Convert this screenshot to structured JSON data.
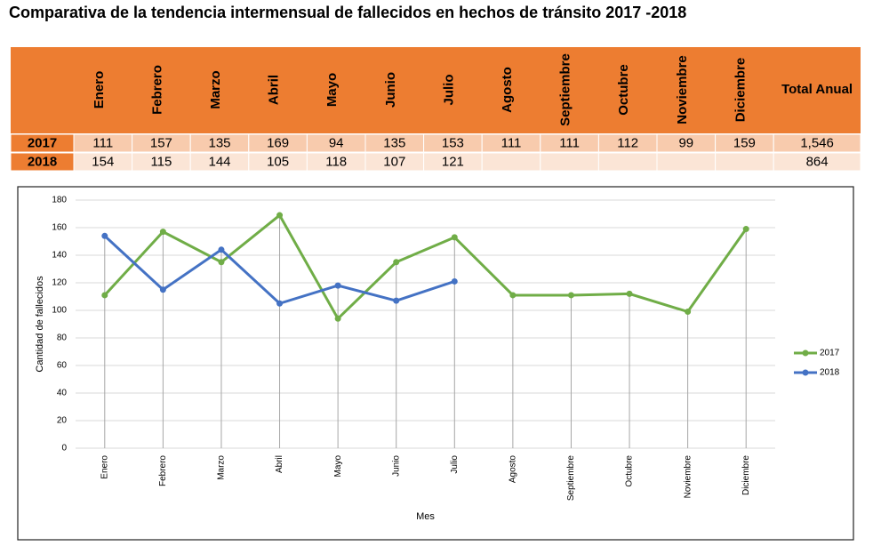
{
  "title": "Comparativa de la tendencia intermensual de fallecidos en hechos de tránsito 2017 -2018",
  "table": {
    "header": [
      "Enero",
      "Febrero",
      "Marzo",
      "Abril",
      "Mayo",
      "Junio",
      "Julio",
      "Agosto",
      "Septiembre",
      "Octubre",
      "Noviembre",
      "Diciembre",
      "Total Anual"
    ],
    "rows": [
      [
        "2017",
        111,
        157,
        135,
        169,
        94,
        135,
        153,
        111,
        111,
        112,
        99,
        159,
        "1,546"
      ],
      [
        "2018",
        154,
        115,
        144,
        105,
        118,
        107,
        121,
        null,
        null,
        null,
        null,
        null,
        864
      ]
    ]
  },
  "chart_data": {
    "type": "line",
    "categories": [
      "Enero",
      "Febrero",
      "Marzo",
      "Abril",
      "Mayo",
      "Junio",
      "Julio",
      "Agosto",
      "Septiembre",
      "Octubre",
      "Noviembre",
      "Diciembre"
    ],
    "series": [
      {
        "name": "2017",
        "color": "#70ad47",
        "values": [
          111,
          157,
          135,
          169,
          94,
          135,
          153,
          111,
          111,
          112,
          99,
          159
        ]
      },
      {
        "name": "2018",
        "color": "#4472c4",
        "values": [
          154,
          115,
          144,
          105,
          118,
          107,
          121,
          null,
          null,
          null,
          null,
          null
        ]
      }
    ],
    "ylim": [
      0,
      180
    ],
    "yticks": [
      0,
      20,
      40,
      60,
      80,
      100,
      120,
      140,
      160,
      180
    ],
    "ylabel": "Cantidad de fallecidos",
    "xlabel": "Mes",
    "grid": true,
    "drop_lines": true,
    "legend": "right"
  }
}
